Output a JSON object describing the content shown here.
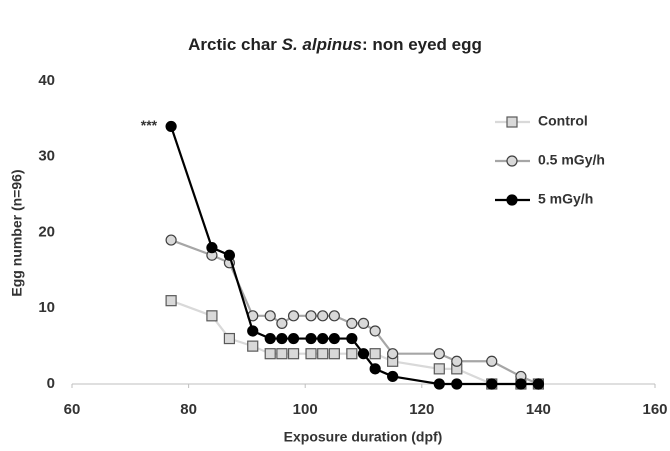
{
  "chart_data": {
    "type": "line",
    "title": [
      {
        "text": "Arctic char "
      },
      {
        "text": "S. alpinus",
        "italic": true
      },
      {
        "text": ": non eyed egg"
      }
    ],
    "x_label": "Exposure duration (dpf)",
    "y_label": "Egg number (n=96)",
    "annotation": "***",
    "xlim": [
      60,
      160
    ],
    "xticks": [
      60,
      80,
      100,
      120,
      140,
      160
    ],
    "ylim": [
      0,
      40
    ],
    "yticks": [
      0,
      10,
      20,
      30,
      40
    ],
    "legend": "upper right",
    "series": [
      {
        "name": "Control",
        "color": "#d9d9d9",
        "marker": "square",
        "marker_fill": "#d9d9d9",
        "marker_stroke": "#595959",
        "x": [
          77,
          84,
          87,
          91,
          94,
          96,
          98,
          101,
          103,
          105,
          108,
          112,
          115,
          123,
          126,
          132,
          137,
          140
        ],
        "values": [
          11,
          9,
          6,
          5,
          4,
          4,
          4,
          4,
          4,
          4,
          4,
          4,
          3,
          2,
          2,
          0,
          0,
          0
        ]
      },
      {
        "name": "0.5 mGy/h",
        "color": "#a6a6a6",
        "marker": "circle",
        "marker_fill": "#d9d9d9",
        "marker_stroke": "#404040",
        "x": [
          77,
          84,
          87,
          91,
          94,
          96,
          98,
          101,
          103,
          105,
          108,
          110,
          112,
          115,
          123,
          126,
          132,
          137,
          140
        ],
        "values": [
          19,
          17,
          16,
          9,
          9,
          8,
          9,
          9,
          9,
          9,
          8,
          8,
          7,
          4,
          4,
          3,
          3,
          1,
          0
        ]
      },
      {
        "name": "5  mGy/h",
        "color": "#000000",
        "marker": "circle",
        "marker_fill": "#000000",
        "marker_stroke": "#000000",
        "x": [
          77,
          84,
          87,
          91,
          94,
          96,
          98,
          101,
          103,
          105,
          108,
          110,
          112,
          115,
          123,
          126,
          132,
          137,
          140
        ],
        "values": [
          34,
          18,
          17,
          7,
          6,
          6,
          6,
          6,
          6,
          6,
          6,
          4,
          2,
          1,
          0,
          0,
          0,
          0,
          0
        ]
      }
    ]
  }
}
